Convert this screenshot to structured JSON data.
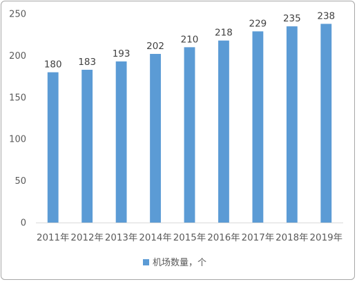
{
  "chart_data": {
    "type": "bar",
    "categories": [
      "2011年",
      "2012年",
      "2013年",
      "2014年",
      "2015年",
      "2016年",
      "2017年",
      "2018年",
      "2019年"
    ],
    "series": [
      {
        "name": "机场数量，个",
        "values": [
          180,
          183,
          193,
          202,
          210,
          218,
          229,
          235,
          238
        ]
      }
    ],
    "title": "",
    "xlabel": "",
    "ylabel": "",
    "ylim": [
      0,
      250
    ],
    "yticks": [
      0,
      50,
      100,
      150,
      200,
      250
    ],
    "grid": false,
    "legend_position": "bottom",
    "bar_color": "#5b9bd5",
    "data_labels": true
  }
}
